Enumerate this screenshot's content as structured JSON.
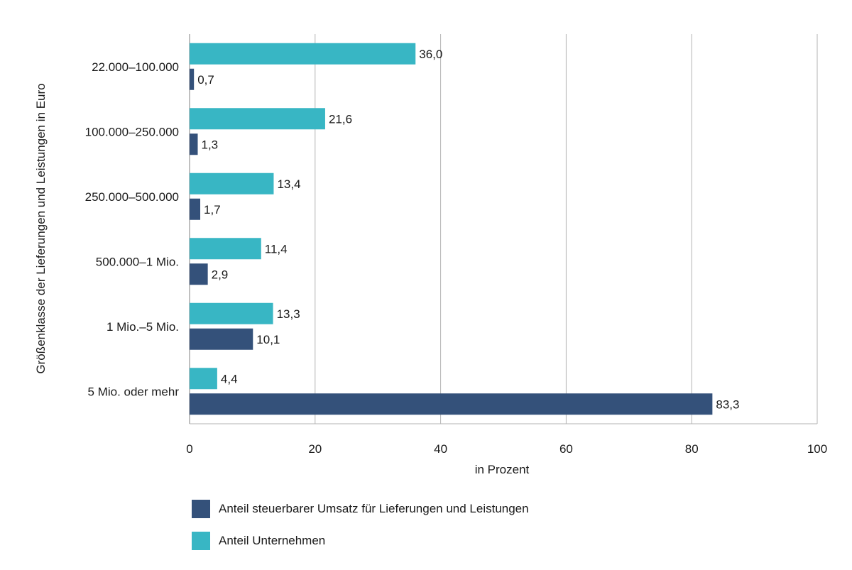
{
  "chart_data": {
    "type": "bar",
    "orientation": "horizontal",
    "categories": [
      "22.000–100.000",
      "100.000–250.000",
      "250.000–500.000",
      "500.000–1 Mio.",
      "1 Mio.–5 Mio.",
      "5 Mio. oder mehr"
    ],
    "series": [
      {
        "name": "Anteil Unternehmen",
        "color": "#38b6c4",
        "values": [
          36.0,
          21.6,
          13.4,
          11.4,
          13.3,
          4.4
        ],
        "labels": [
          "36,0",
          "21,6",
          "13,4",
          "11,4",
          "13,3",
          "4,4"
        ]
      },
      {
        "name": "Anteil steuerbarer Umsatz für Lieferungen und Leistungen",
        "color": "#34517a",
        "values": [
          0.7,
          1.3,
          1.7,
          2.9,
          10.1,
          83.3
        ],
        "labels": [
          "0,7",
          "1,3",
          "1,7",
          "2,9",
          "10,1",
          "83,3"
        ]
      }
    ],
    "xlabel": "in Prozent",
    "ylabel": "Größenklasse der Lieferungen und Leistungen in Euro",
    "xlim": [
      0,
      100
    ],
    "xticks": [
      0,
      20,
      40,
      60,
      80,
      100
    ],
    "xtick_labels": [
      "0",
      "20",
      "40",
      "60",
      "80",
      "100"
    ],
    "grid": true,
    "legend_position": "bottom-left",
    "legend": [
      {
        "label": "Anteil steuerbarer Umsatz für Lieferungen und Leistungen",
        "color": "#34517a"
      },
      {
        "label": "Anteil Unternehmen",
        "color": "#38b6c4"
      }
    ]
  }
}
